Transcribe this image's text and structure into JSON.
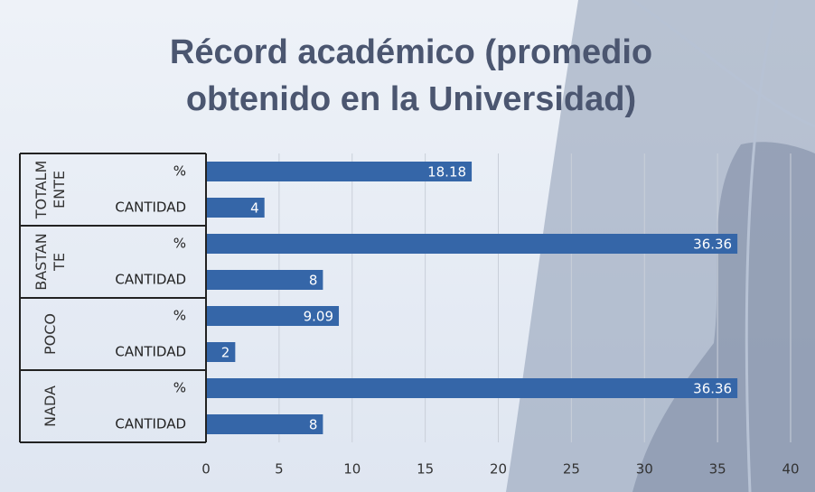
{
  "chart_data": {
    "type": "bar",
    "orientation": "horizontal",
    "title": "Récord académico (promedio obtenido en la Universidad)",
    "groups": [
      "TOTALMENTE",
      "BASTANTE",
      "POCO",
      "NADA"
    ],
    "categories": [
      "%",
      "CANTIDAD",
      "%",
      "CANTIDAD",
      "%",
      "CANTIDAD",
      "%",
      "CANTIDAD"
    ],
    "values": [
      18.18,
      4,
      36.36,
      8,
      9.09,
      2,
      36.36,
      8
    ],
    "color": "#3566a8",
    "xlim": [
      0,
      40
    ],
    "xticks": [
      0,
      5,
      10,
      15,
      20,
      25,
      30,
      35,
      40
    ],
    "grid": true
  }
}
